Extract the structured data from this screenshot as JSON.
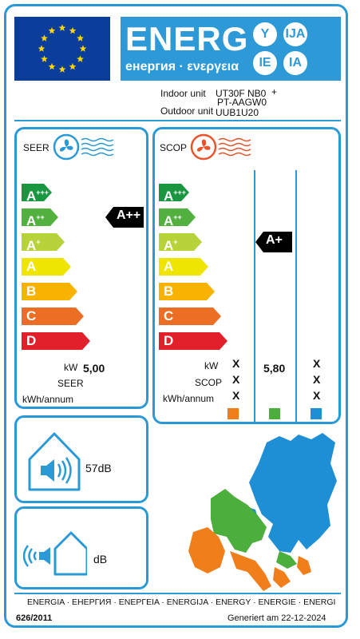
{
  "header": {
    "energy_word": "ENERG",
    "energy_subtitle": "енергия · ενεργεια",
    "lang_codes": [
      "Y",
      "IJA",
      "IE",
      "IA"
    ]
  },
  "units": {
    "indoor_label": "Indoor unit",
    "indoor_value_line1": "UT30F NB0",
    "indoor_value_plus": "+",
    "indoor_value_line2": "PT-AAGW0",
    "outdoor_label": "Outdoor unit",
    "outdoor_value": "UUB1U20"
  },
  "seer": {
    "title": "SEER",
    "classes": [
      "A+++",
      "A++",
      "A+",
      "A",
      "B",
      "C",
      "D"
    ],
    "class_colors": [
      "#1a9641",
      "#52b03e",
      "#b6d43a",
      "#f0e500",
      "#f8b300",
      "#ec6d24",
      "#e2202b"
    ],
    "rating": "A++",
    "kw_label": "kW",
    "kw_value": "5,00",
    "seer_label": "SEER",
    "kwh_label": "kWh/annum"
  },
  "scop": {
    "title": "SCOP",
    "classes": [
      "A+++",
      "A++",
      "A+",
      "A",
      "B",
      "C",
      "D"
    ],
    "rating": "A+",
    "kw_label": "kW",
    "scop_label": "SCOP",
    "kwh_label": "kWh/annum",
    "col1": [
      "X",
      "X",
      "X"
    ],
    "col2_kw_value": "5,80",
    "col3": [
      "X",
      "X",
      "X"
    ],
    "climate_colors": [
      "#f07e1a",
      "#4cae3c",
      "#1e8fd4"
    ]
  },
  "noise": {
    "indoor_value": "57dB",
    "outdoor_value": "dB"
  },
  "footer": {
    "languages": "ENERGIA · ЕНЕРГИЯ · ΕΝΕΡΓΕΙΑ · ENERGIJA · ENERGY · ENERGIE · ENERGI",
    "regulation": "626/2011",
    "generated": "Generiert am 22-12-2024"
  }
}
